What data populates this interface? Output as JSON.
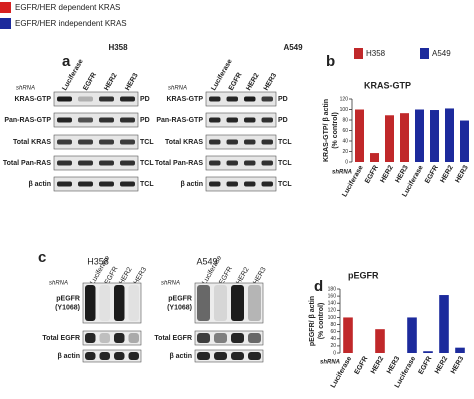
{
  "legend": [
    {
      "label": "EGFR/HER dependent KRAS",
      "color": "#d62020"
    },
    {
      "label": "EGFR/HER independent KRAS",
      "color": "#1c2a9c"
    }
  ],
  "panel_a": {
    "label": "a",
    "shrna_label": "shRNA",
    "columns": [
      "Luciferase",
      "EGFR",
      "HER2",
      "HER3"
    ],
    "blots": [
      {
        "title": "H358",
        "color": "#c0282a"
      },
      {
        "title": "A549",
        "color": "#2b3f8c"
      }
    ],
    "rows": [
      {
        "name": "KRAS-GTP",
        "tag": "PD"
      },
      {
        "name": "Pan-RAS-GTP",
        "tag": "PD"
      },
      {
        "name": "Total KRAS",
        "tag": "TCL"
      },
      {
        "name": "Total Pan-RAS",
        "tag": "TCL"
      },
      {
        "name": "β actin",
        "tag": "TCL"
      }
    ]
  },
  "panel_c": {
    "label": "c",
    "shrna_label": "shRNA",
    "columns": [
      "Luciferase",
      "EGFR",
      "HER2",
      "HER3"
    ],
    "blots": [
      {
        "title": "H358",
        "color": "#c0282a"
      },
      {
        "title": "A549",
        "color": "#2b3f8c"
      }
    ],
    "rows": [
      [
        "pEGFR",
        "(Y1068)"
      ],
      [
        "Total EGFR"
      ],
      [
        "β actin"
      ]
    ]
  },
  "chart_data": [
    {
      "type": "bar",
      "panel_label": "b",
      "title": "KRAS-GTP",
      "ylabel": [
        "KRAS-GTP/ β actin",
        "(% control)"
      ],
      "shrna_label": "shRNA",
      "categories": [
        "Luciferase",
        "EGFR",
        "HER2",
        "HER3",
        "Luciferase",
        "EGFR",
        "HER2",
        "HER3"
      ],
      "series": [
        {
          "name": "H358",
          "color": "#c0282a",
          "values": [
            100,
            17,
            89,
            93,
            null,
            null,
            null,
            null
          ]
        },
        {
          "name": "A549",
          "color": "#1c2a9c",
          "values": [
            null,
            null,
            null,
            null,
            100,
            99,
            102,
            79
          ]
        }
      ],
      "ylim": [
        0,
        120
      ],
      "yticks": [
        0,
        20,
        40,
        60,
        80,
        100,
        120
      ],
      "legend": true
    },
    {
      "type": "bar",
      "panel_label": "d",
      "title": "pEGFR",
      "ylabel": [
        "pEGFR/ β actin",
        "(% control)"
      ],
      "shrna_label": "shRNA",
      "categories": [
        "Luciferase",
        "EGFR",
        "HER2",
        "HER3",
        "Luciferase",
        "EGFR",
        "HER2",
        "HER3"
      ],
      "series": [
        {
          "color": "#c0282a",
          "values": [
            100,
            0,
            67,
            0,
            null,
            null,
            null,
            null
          ]
        },
        {
          "color": "#1c2a9c",
          "values": [
            null,
            null,
            null,
            null,
            100,
            5,
            163,
            15
          ]
        }
      ],
      "ylim": [
        0,
        180
      ],
      "yticks": [
        0,
        20,
        40,
        60,
        80,
        100,
        120,
        140,
        160,
        180
      ],
      "legend": false
    }
  ]
}
